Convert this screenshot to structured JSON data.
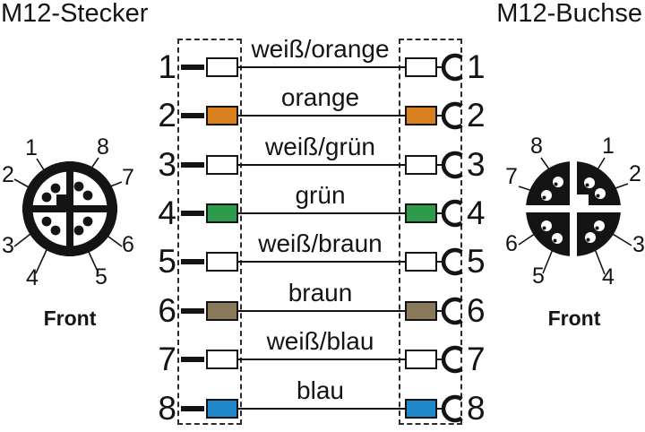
{
  "header": {
    "left_title": "M12-Stecker",
    "right_title": "M12-Buchse"
  },
  "connectors": {
    "left": {
      "front_label": "Front",
      "pins": [
        "1",
        "2",
        "3",
        "4",
        "5",
        "6",
        "7",
        "8"
      ]
    },
    "right": {
      "front_label": "Front",
      "pins": [
        "1",
        "2",
        "3",
        "4",
        "5",
        "6",
        "7",
        "8"
      ]
    }
  },
  "wires": {
    "rows": [
      {
        "pin": "1",
        "label": "weiß/orange",
        "color": "#ffffff"
      },
      {
        "pin": "2",
        "label": "orange",
        "color": "#d9811e"
      },
      {
        "pin": "3",
        "label": "weiß/grün",
        "color": "#ffffff"
      },
      {
        "pin": "4",
        "label": "grün",
        "color": "#2e9a4b"
      },
      {
        "pin": "5",
        "label": "weiß/braun",
        "color": "#ffffff"
      },
      {
        "pin": "6",
        "label": "braun",
        "color": "#8b795b"
      },
      {
        "pin": "7",
        "label": "weiß/blau",
        "color": "#ffffff"
      },
      {
        "pin": "8",
        "label": "blau",
        "color": "#1e88ca"
      }
    ]
  },
  "icons": {
    "socket_contact": "open-c-arc"
  },
  "colors": {
    "ink": "#141414",
    "background": "#ffffff"
  }
}
